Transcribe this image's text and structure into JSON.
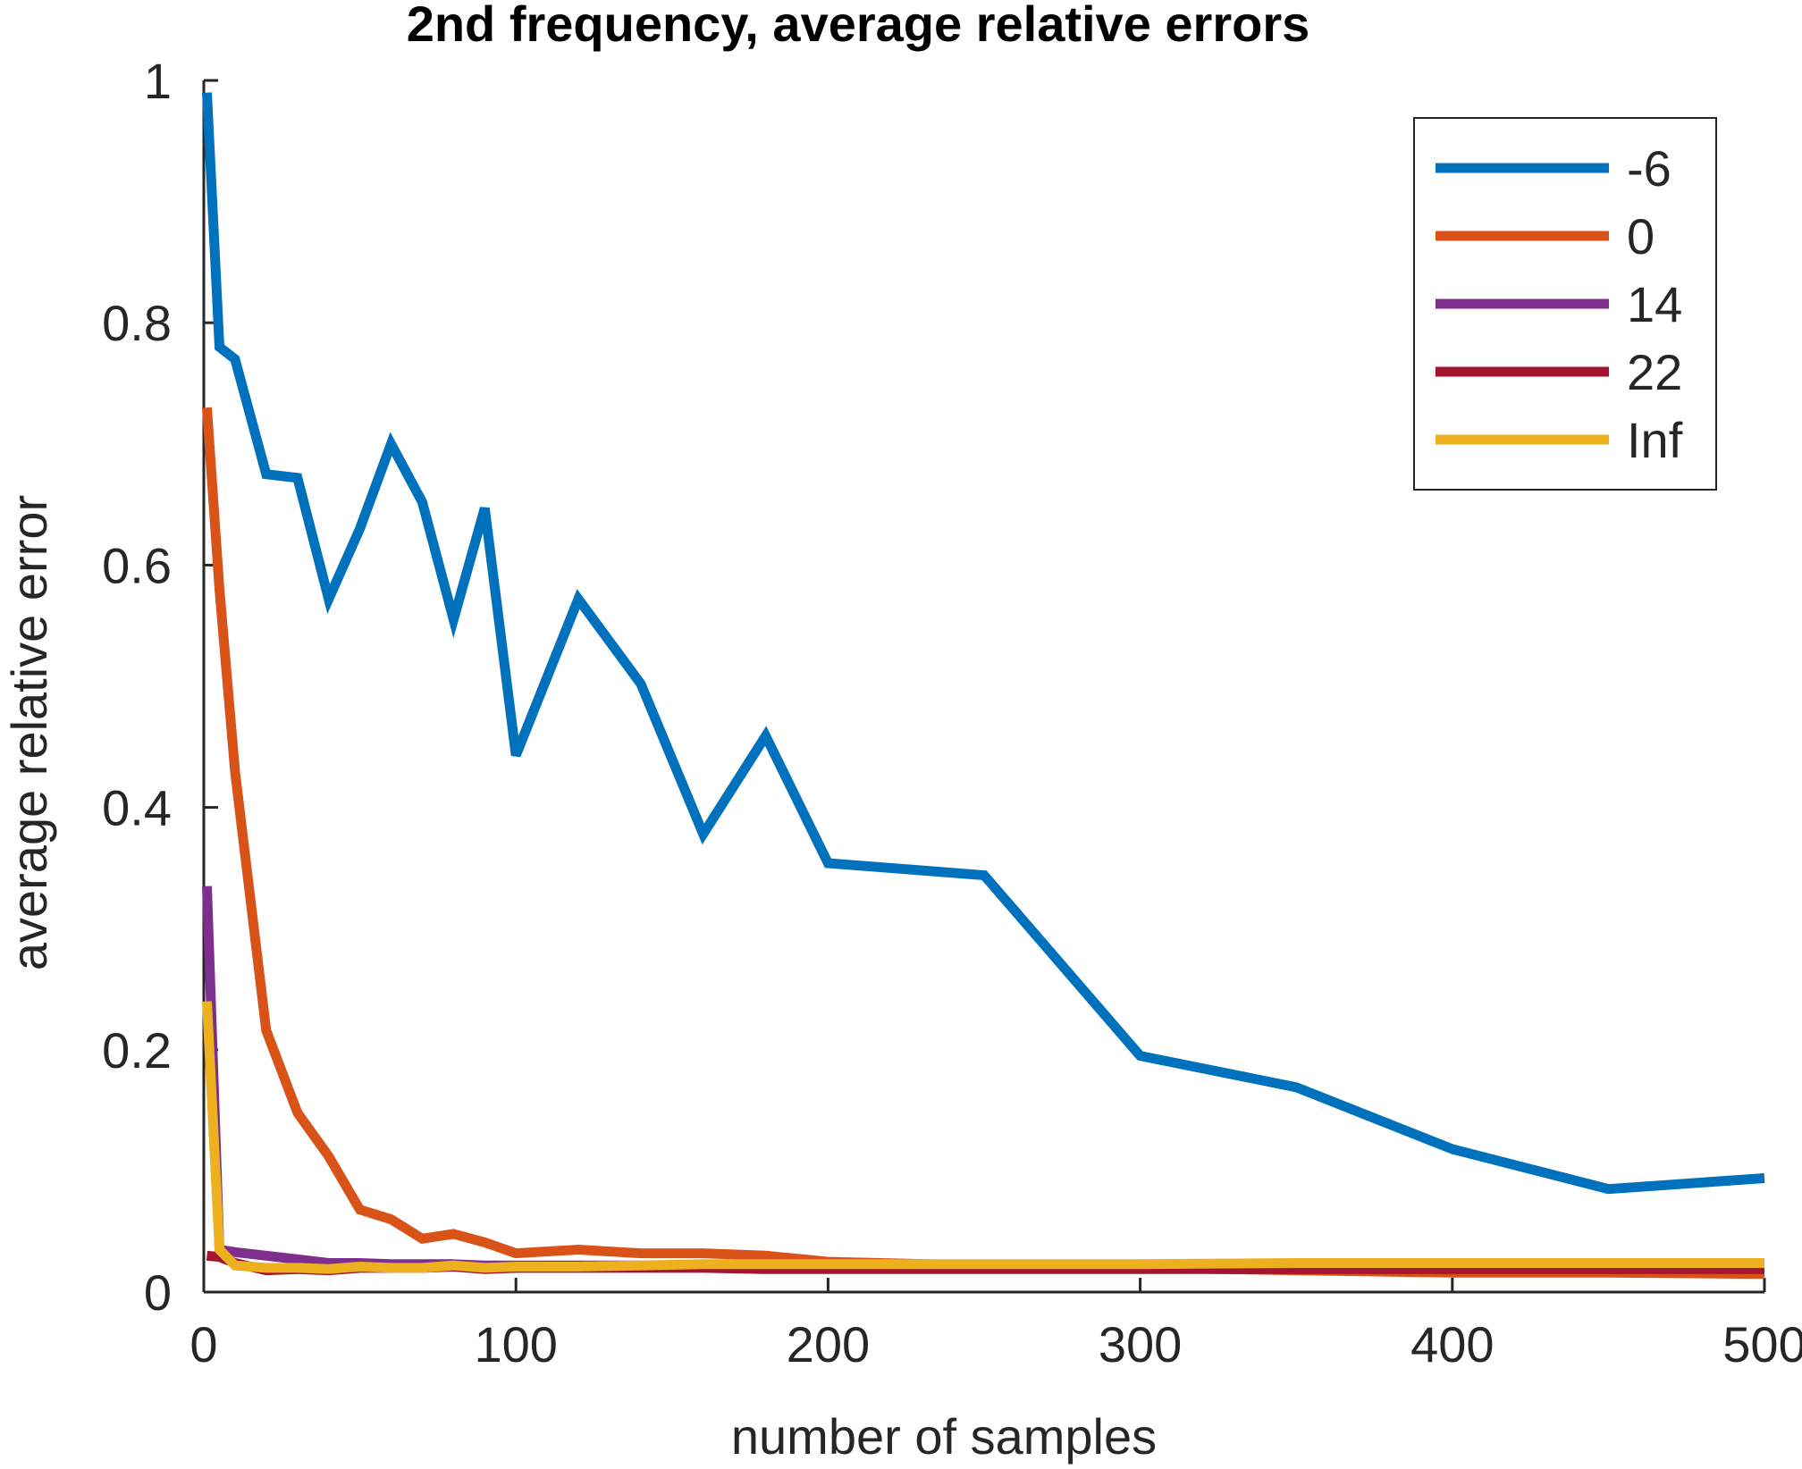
{
  "chart_data": {
    "type": "line",
    "title": "2nd frequency, average relative errors",
    "xlabel": "number of samples",
    "ylabel": "average relative error",
    "xlim": [
      0,
      500
    ],
    "ylim": [
      0,
      1
    ],
    "xticks": [
      0,
      100,
      200,
      300,
      400,
      500
    ],
    "xtick_labels": [
      "0",
      "100",
      "200",
      "300",
      "400",
      "500"
    ],
    "yticks": [
      0,
      0.2,
      0.4,
      0.6,
      0.8,
      1
    ],
    "ytick_labels": [
      "0",
      "0.2",
      "0.4",
      "0.6",
      "0.8",
      "1"
    ],
    "grid": false,
    "legend": {
      "position": "top-right"
    },
    "series": [
      {
        "name": "-6",
        "color": "#0072BD",
        "x": [
          1,
          5,
          10,
          20,
          30,
          40,
          50,
          60,
          70,
          80,
          90,
          100,
          120,
          140,
          160,
          180,
          200,
          250,
          300,
          350,
          400,
          450,
          500
        ],
        "y": [
          0.99,
          0.78,
          0.77,
          0.675,
          0.672,
          0.572,
          0.63,
          0.7,
          0.652,
          0.555,
          0.647,
          0.443,
          0.572,
          0.502,
          0.378,
          0.459,
          0.354,
          0.344,
          0.195,
          0.169,
          0.118,
          0.085,
          0.094
        ]
      },
      {
        "name": "0",
        "color": "#D95319",
        "x": [
          1,
          5,
          10,
          20,
          30,
          40,
          50,
          60,
          70,
          80,
          90,
          100,
          120,
          140,
          160,
          180,
          200,
          250,
          300,
          350,
          400,
          450,
          500
        ],
        "y": [
          0.73,
          0.58,
          0.43,
          0.216,
          0.148,
          0.112,
          0.068,
          0.06,
          0.044,
          0.048,
          0.041,
          0.032,
          0.035,
          0.032,
          0.032,
          0.03,
          0.025,
          0.022,
          0.02,
          0.018,
          0.016,
          0.016,
          0.015
        ]
      },
      {
        "name": "14",
        "color": "#7E2F8E",
        "x": [
          1,
          5,
          10,
          20,
          30,
          40,
          50,
          60,
          70,
          80,
          90,
          100,
          120,
          140,
          160,
          180,
          200,
          250,
          300,
          350,
          400,
          450,
          500
        ],
        "y": [
          0.335,
          0.035,
          0.033,
          0.03,
          0.027,
          0.024,
          0.024,
          0.023,
          0.023,
          0.023,
          0.022,
          0.022,
          0.022,
          0.022,
          0.022,
          0.022,
          0.022,
          0.022,
          0.022,
          0.022,
          0.022,
          0.022,
          0.022
        ]
      },
      {
        "name": "22",
        "color": "#A2142F",
        "x": [
          1,
          5,
          10,
          20,
          30,
          40,
          50,
          60,
          70,
          80,
          90,
          100,
          120,
          140,
          160,
          180,
          200,
          250,
          300,
          350,
          400,
          450,
          500
        ],
        "y": [
          0.03,
          0.029,
          0.024,
          0.018,
          0.019,
          0.018,
          0.02,
          0.02,
          0.02,
          0.021,
          0.019,
          0.02,
          0.02,
          0.02,
          0.02,
          0.019,
          0.019,
          0.019,
          0.019,
          0.019,
          0.019,
          0.019,
          0.019
        ]
      },
      {
        "name": "Inf",
        "color": "#EDB120",
        "x": [
          1,
          5,
          10,
          20,
          30,
          40,
          50,
          60,
          70,
          80,
          90,
          100,
          120,
          140,
          160,
          180,
          200,
          250,
          300,
          350,
          400,
          450,
          500
        ],
        "y": [
          0.24,
          0.035,
          0.022,
          0.02,
          0.02,
          0.019,
          0.021,
          0.02,
          0.02,
          0.022,
          0.02,
          0.021,
          0.021,
          0.022,
          0.023,
          0.023,
          0.023,
          0.023,
          0.023,
          0.024,
          0.024,
          0.024,
          0.024
        ]
      }
    ]
  }
}
